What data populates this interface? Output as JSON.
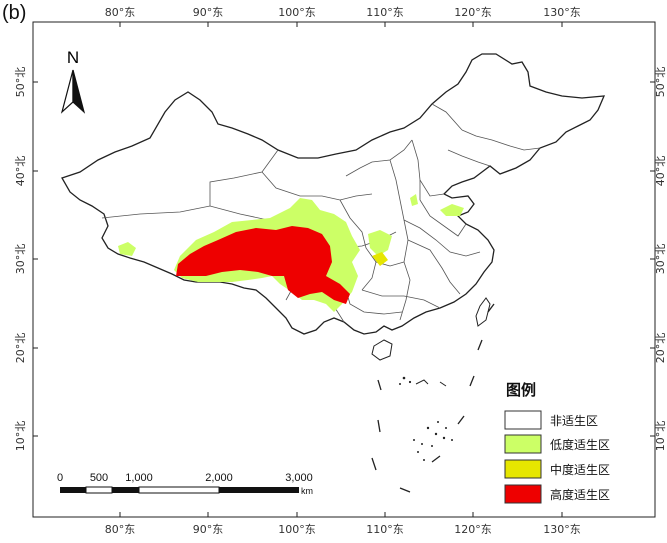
{
  "panel_label": "(b)",
  "axes": {
    "lon_ticks": [
      "80°东",
      "90°东",
      "100°东",
      "110°东",
      "120°东",
      "130°东"
    ],
    "lat_ticks": [
      "50°北",
      "40°北",
      "30°北",
      "20°北",
      "10°北"
    ]
  },
  "north_arrow": {
    "label": "N"
  },
  "scale_bar": {
    "labels": [
      "0",
      "500",
      "1,000",
      "2,000",
      "3,000"
    ],
    "unit": "km"
  },
  "legend": {
    "title": "图例",
    "items": [
      {
        "label": "非适生区",
        "color": "#ffffff"
      },
      {
        "label": "低度适生区",
        "color": "#ccff66"
      },
      {
        "label": "中度适生区",
        "color": "#e6e600"
      },
      {
        "label": "高度适生区",
        "color": "#ee0000"
      }
    ]
  },
  "colors": {
    "low": "#ccff66",
    "medium": "#e6e600",
    "high": "#ee0000"
  }
}
